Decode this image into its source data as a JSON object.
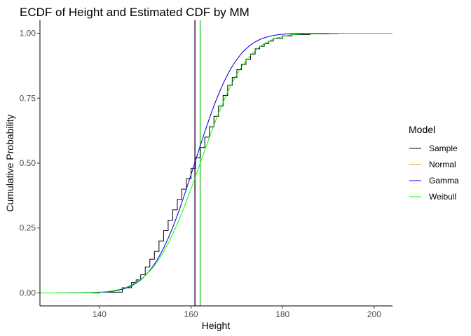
{
  "chart_data": {
    "type": "line",
    "title": "ECDF of Height and Estimated CDF by MM",
    "xlabel": "Height",
    "ylabel": "Cumulative Probability",
    "xlim": [
      127,
      204
    ],
    "ylim": [
      -0.05,
      1.05
    ],
    "x_ticks": [
      140,
      160,
      180,
      200
    ],
    "y_ticks": [
      0.0,
      0.25,
      0.5,
      0.75,
      1.0
    ],
    "x_tick_labels": [
      "140",
      "160",
      "180",
      "200"
    ],
    "y_tick_labels": [
      "0.00",
      "0.25",
      "0.50",
      "0.75",
      "1.00"
    ],
    "grid": false,
    "legend": {
      "title": "Model",
      "position": "right"
    },
    "series": [
      {
        "name": "Sample",
        "kind": "ecdf",
        "color": "#000000",
        "x": [
          127,
          140,
          145,
          147,
          148,
          149,
          150,
          151,
          152,
          153,
          154,
          155,
          156,
          157,
          158,
          159,
          160,
          161,
          162,
          163,
          164,
          165,
          166,
          167,
          168,
          169,
          170,
          171,
          172,
          173,
          174,
          175,
          176,
          177,
          178,
          180,
          182,
          186,
          190,
          192,
          204
        ],
        "y": [
          0.0,
          0.003,
          0.02,
          0.04,
          0.05,
          0.07,
          0.1,
          0.13,
          0.16,
          0.2,
          0.24,
          0.28,
          0.32,
          0.36,
          0.4,
          0.44,
          0.48,
          0.52,
          0.56,
          0.6,
          0.64,
          0.68,
          0.72,
          0.76,
          0.8,
          0.83,
          0.86,
          0.88,
          0.9,
          0.92,
          0.94,
          0.95,
          0.96,
          0.97,
          0.98,
          0.99,
          0.995,
          0.998,
          0.999,
          1.0,
          1.0
        ]
      },
      {
        "name": "Normal",
        "kind": "cdf",
        "color": "#E69F00",
        "mean": 160.8,
        "sd": 7.2
      },
      {
        "name": "Gamma",
        "kind": "cdf",
        "color": "#0000FF",
        "mean": 160.8,
        "sd": 7.2
      },
      {
        "name": "Weibull",
        "kind": "cdf",
        "color": "#00FF00",
        "mean": 162.0,
        "sd": 8.0
      }
    ],
    "vlines": [
      {
        "x": 160.8,
        "color": "#808080"
      },
      {
        "x": 160.9,
        "color": "#8B3A8B"
      },
      {
        "x": 162.0,
        "color": "#33CC33"
      }
    ]
  }
}
